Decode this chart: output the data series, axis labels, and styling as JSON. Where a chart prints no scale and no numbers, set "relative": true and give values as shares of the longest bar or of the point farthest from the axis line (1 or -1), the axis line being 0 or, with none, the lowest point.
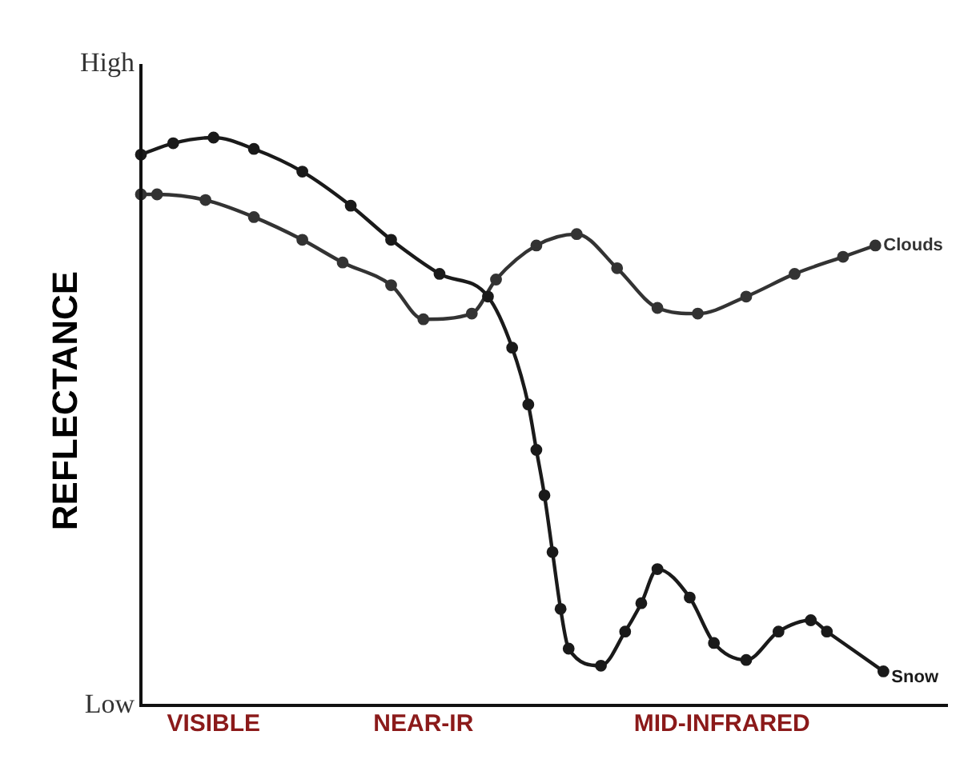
{
  "chart_data": {
    "type": "line",
    "relative": true,
    "ylabel": "REFLECTANCE",
    "annotations": [
      "High",
      "Low"
    ],
    "categories": [
      null,
      null,
      null,
      null,
      null,
      null,
      null,
      null,
      null,
      "VISIBLE",
      null,
      null,
      null,
      null,
      null,
      null,
      null,
      null,
      null,
      null,
      null,
      null,
      null,
      null,
      null,
      null,
      null,
      null,
      null,
      null,
      null,
      null,
      null,
      null,
      null,
      "NEAR-IR",
      null,
      null,
      null,
      null,
      null,
      null,
      null,
      null,
      null,
      null,
      null,
      null,
      null,
      null,
      null,
      null,
      null,
      null,
      null,
      null,
      null,
      null,
      null,
      null,
      null,
      null,
      null,
      null,
      null,
      null,
      null,
      null,
      null,
      null,
      null,
      null,
      "MID-INFRARED",
      null,
      null,
      null,
      null,
      null,
      null,
      null,
      null,
      null,
      null,
      null,
      null,
      null,
      null,
      null,
      null,
      null,
      null,
      null,
      null,
      null,
      null,
      null,
      null,
      null,
      null,
      null,
      null
    ],
    "marker": "circle",
    "line_style": "solid",
    "grid": false,
    "legend": false,
    "series": [
      {
        "name": "Snow",
        "color": "#1a1a1a",
        "values": [
          0.97,
          null,
          null,
          null,
          0.99,
          null,
          null,
          null,
          null,
          1,
          null,
          null,
          null,
          null,
          0.98,
          null,
          null,
          null,
          null,
          null,
          0.94,
          null,
          null,
          null,
          null,
          null,
          0.88,
          null,
          null,
          null,
          null,
          0.82,
          null,
          null,
          null,
          null,
          null,
          0.76,
          null,
          null,
          null,
          null,
          null,
          0.72,
          null,
          null,
          0.63,
          null,
          0.53,
          0.45,
          0.37,
          0.27,
          0.17,
          0.1,
          null,
          null,
          null,
          0.07,
          null,
          null,
          0.13,
          null,
          0.18,
          null,
          0.24,
          null,
          null,
          null,
          0.19,
          null,
          null,
          0.11,
          null,
          null,
          null,
          0.08,
          null,
          null,
          null,
          0.13,
          null,
          null,
          null,
          0.15,
          null,
          0.13,
          null,
          null,
          null,
          null,
          null,
          null,
          0.06,
          null,
          null,
          null,
          null,
          null,
          null,
          null,
          null
        ]
      },
      {
        "name": "Clouds",
        "color": "#333333",
        "values": [
          0.9,
          null,
          0.9,
          null,
          null,
          null,
          null,
          null,
          0.89,
          null,
          null,
          null,
          null,
          null,
          0.86,
          null,
          null,
          null,
          null,
          null,
          0.82,
          null,
          null,
          null,
          null,
          0.78,
          null,
          null,
          null,
          null,
          null,
          0.74,
          null,
          null,
          null,
          0.68,
          null,
          null,
          null,
          null,
          null,
          0.69,
          null,
          null,
          0.75,
          null,
          null,
          null,
          null,
          0.81,
          null,
          null,
          null,
          null,
          0.83,
          null,
          null,
          null,
          null,
          0.77,
          null,
          null,
          null,
          null,
          0.7,
          null,
          null,
          null,
          null,
          0.69,
          null,
          null,
          null,
          null,
          null,
          0.72,
          null,
          null,
          null,
          null,
          null,
          0.76,
          null,
          null,
          null,
          null,
          null,
          0.79,
          null,
          null,
          null,
          0.81,
          null,
          null,
          null,
          null,
          null,
          null,
          null,
          null,
          null
        ]
      }
    ]
  }
}
